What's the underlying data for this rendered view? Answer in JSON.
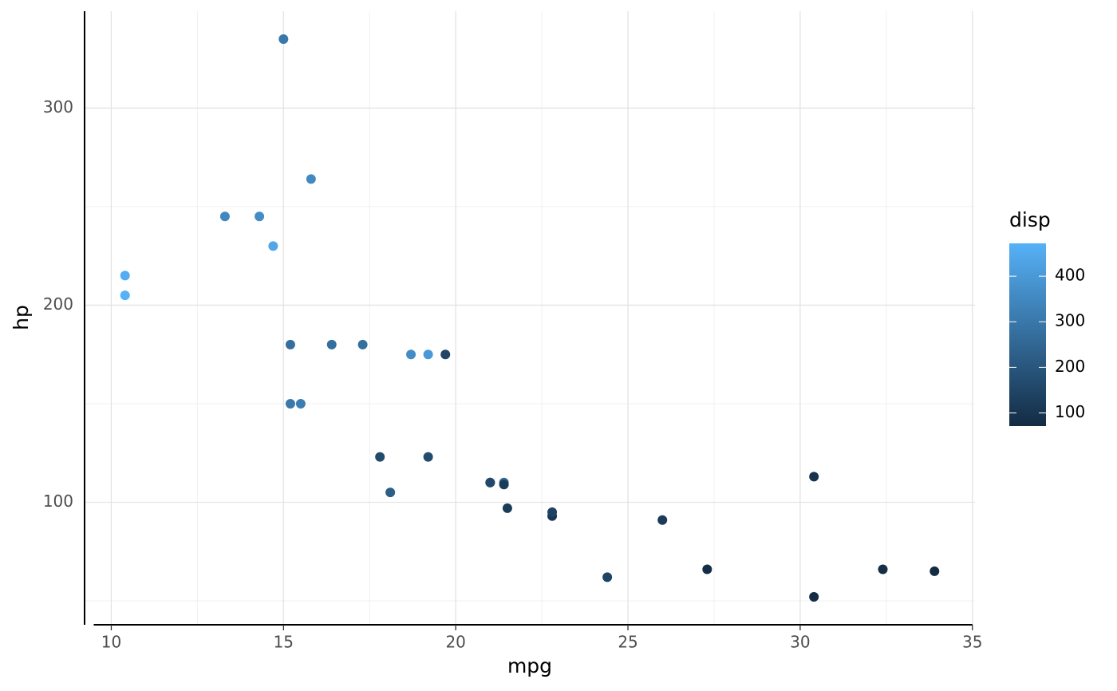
{
  "chart_data": {
    "type": "scatter",
    "x_label": "mpg",
    "y_label": "hp",
    "x": [
      21,
      21,
      22.8,
      21.4,
      18.7,
      18.1,
      14.3,
      24.4,
      22.8,
      19.2,
      17.8,
      16.4,
      17.3,
      15.2,
      10.4,
      10.4,
      14.7,
      32.4,
      30.4,
      33.9,
      21.5,
      15.5,
      15.2,
      13.3,
      19.2,
      27.3,
      26,
      30.4,
      15.8,
      19.7,
      15,
      21.4
    ],
    "values": [
      110,
      110,
      93,
      110,
      175,
      105,
      245,
      62,
      95,
      123,
      123,
      180,
      180,
      180,
      205,
      215,
      230,
      66,
      52,
      65,
      97,
      150,
      150,
      245,
      175,
      66,
      91,
      113,
      264,
      175,
      335,
      109
    ],
    "color_values": [
      160,
      160,
      108,
      258,
      360,
      225,
      360,
      146.7,
      140.8,
      167.6,
      167.6,
      275.8,
      275.8,
      275.8,
      472,
      460,
      440,
      78.7,
      75.7,
      71.1,
      120.1,
      318,
      304,
      350,
      400,
      79,
      120.3,
      95.1,
      351,
      145,
      301,
      121
    ],
    "xlim": [
      9.225,
      35.075
    ],
    "xticks": [
      10,
      15,
      20,
      25,
      30,
      35
    ],
    "x_minor_ticks": [
      12.5,
      17.5,
      22.5,
      27.5,
      32.5
    ],
    "ylim": [
      37.85,
      349.15
    ],
    "yticks": [
      100,
      200,
      300
    ],
    "y_minor_ticks": [
      50,
      150,
      250
    ],
    "grid": true,
    "legend": {
      "title": "disp",
      "low": "#132B43",
      "high": "#56B1F7",
      "limits": [
        71.1,
        472
      ],
      "ticks": [
        100,
        200,
        300,
        400
      ]
    }
  }
}
